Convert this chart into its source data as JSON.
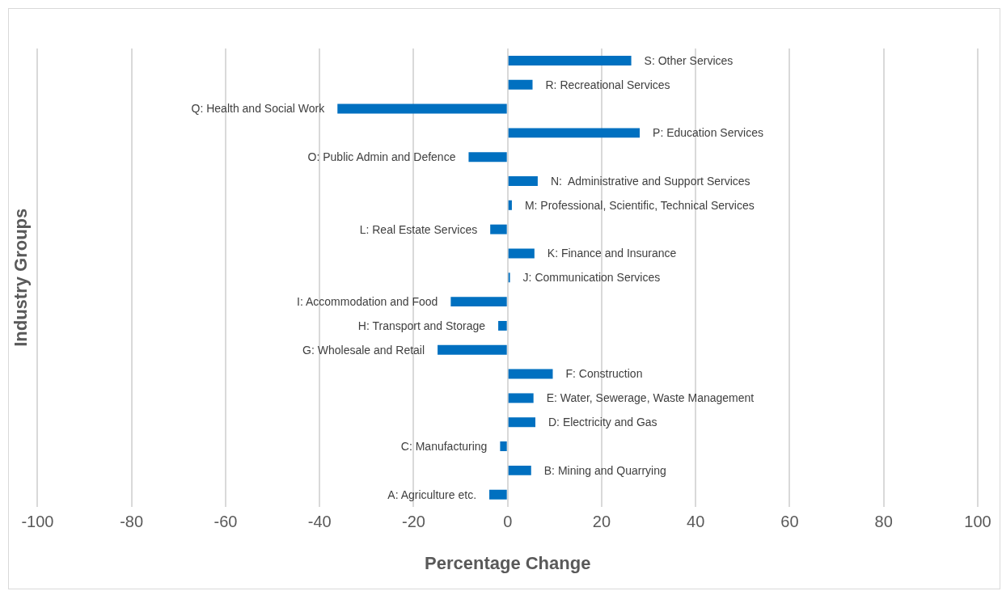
{
  "chart_data": {
    "type": "bar",
    "orientation": "horizontal",
    "xlabel": "Percentage Change",
    "ylabel": "Industry Groups",
    "categories": [
      "S: Other Services",
      "R: Recreational Services",
      "Q: Health and Social Work",
      "P: Education Services",
      "O: Public Admin and Defence",
      "N:  Administrative and Support Services",
      "M: Professional, Scientific, Technical Services",
      "L: Real Estate Services",
      "K: Finance and Insurance",
      "J: Communication Services",
      "I: Accommodation and Food",
      "H: Transport and Storage",
      "G: Wholesale and Retail",
      "F: Construction",
      "E: Water, Sewerage, Waste Management",
      "D: Electricity and Gas",
      "C: Manufacturing",
      "B: Mining and Quarrying",
      "A: Agriculture etc."
    ],
    "values": [
      26.3,
      5.3,
      -36.2,
      28.1,
      -8.3,
      6.4,
      0.9,
      -3.7,
      5.7,
      0.5,
      -12.1,
      -2.0,
      -14.9,
      9.6,
      5.5,
      5.9,
      -1.6,
      5.0,
      -3.9
    ],
    "color": "#0070c0",
    "xlim": [
      -100,
      100
    ],
    "xticks": [
      -100,
      -80,
      -60,
      -40,
      -20,
      0,
      20,
      40,
      60,
      80,
      100
    ],
    "grid": "x",
    "tick_labels": "x",
    "legend": false
  }
}
